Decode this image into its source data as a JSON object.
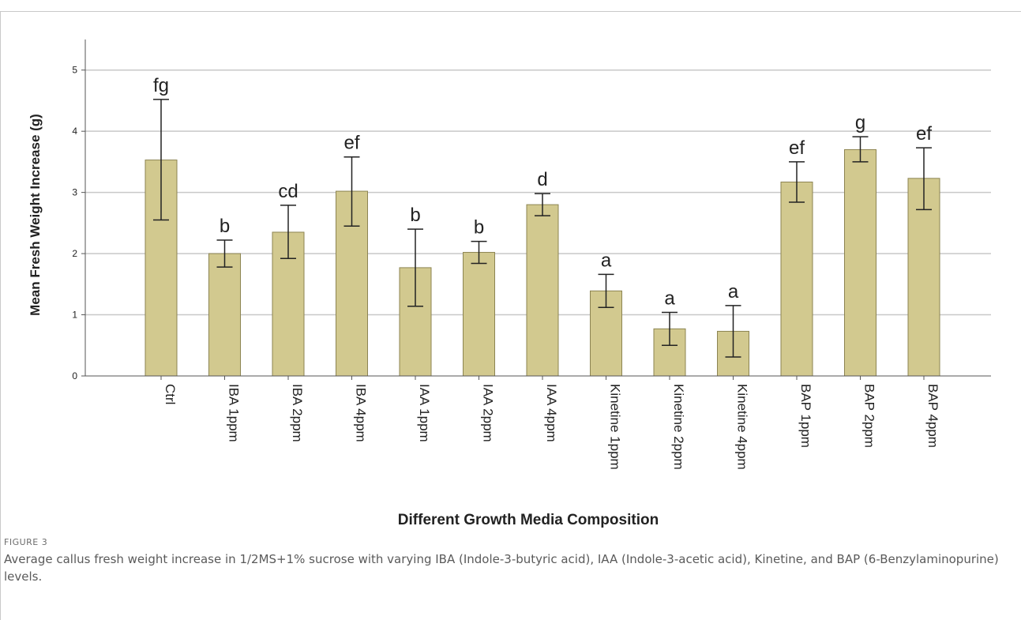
{
  "figure": {
    "label": "FIGURE 3",
    "caption": "Average callus fresh weight increase in 1/2MS+1% sucrose with varying IBA (Indole-3-butyric acid), IAA (Indole-3-acetic acid), Kinetine, and BAP (6-Benzylaminopurine) levels."
  },
  "colors": {
    "bar_fill": "#d2c98f",
    "bar_stroke": "#8c8452",
    "grid": "#c8c8c8",
    "axis": "#555555",
    "text": "#222222"
  },
  "chart_data": {
    "type": "bar",
    "title": "",
    "xlabel": "Different Growth Media Composition",
    "ylabel": "Mean Fresh Weight Increase (g)",
    "ylim": [
      0,
      5.5
    ],
    "yticks": [
      0,
      1,
      2,
      3,
      4,
      5
    ],
    "grid": true,
    "categories": [
      "Ctrl",
      "IBA 1ppm",
      "IBA 2ppm",
      "IBA 4ppm",
      "IAA 1ppm",
      "IAA 2ppm",
      "IAA 4ppm",
      "Kinetine 1ppm",
      "Kinetine 2ppm",
      "Kinetine 4ppm",
      "BAP 1ppm",
      "BAP 2ppm",
      "BAP 4ppm"
    ],
    "values": [
      3.53,
      2.0,
      2.35,
      3.02,
      1.77,
      2.02,
      2.8,
      1.39,
      0.77,
      0.73,
      3.17,
      3.7,
      3.23
    ],
    "error_low": [
      2.55,
      1.78,
      1.92,
      2.45,
      1.14,
      1.84,
      2.62,
      1.12,
      0.5,
      0.31,
      2.84,
      3.5,
      2.72
    ],
    "error_high": [
      4.52,
      2.22,
      2.79,
      3.58,
      2.4,
      2.2,
      2.98,
      1.66,
      1.04,
      1.15,
      3.5,
      3.91,
      3.73
    ],
    "significance_labels": [
      "fg",
      "b",
      "cd",
      "ef",
      "b",
      "b",
      "d",
      "a",
      "a",
      "a",
      "ef",
      "g",
      "ef"
    ]
  }
}
